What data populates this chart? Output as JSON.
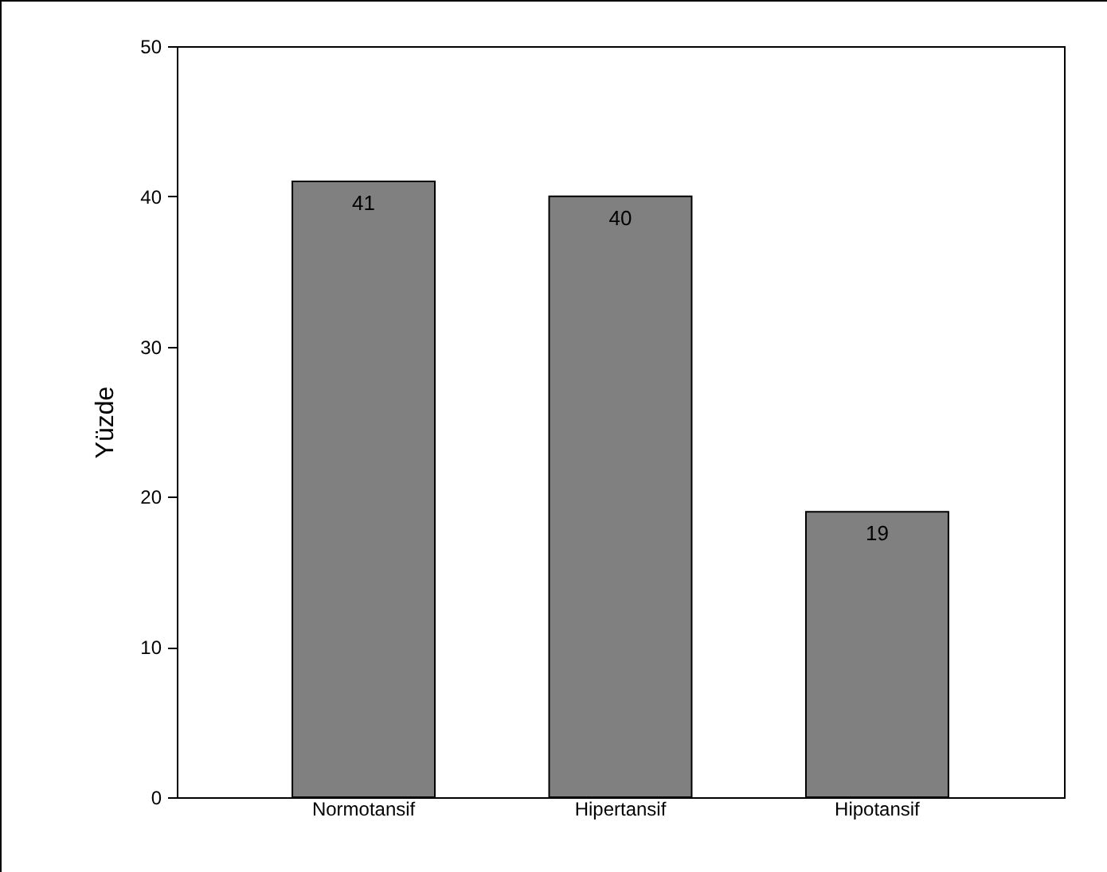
{
  "chart_data": {
    "type": "bar",
    "ylabel": "Yüzde",
    "categories": [
      "Normotansif",
      "Hipertansif",
      "Hipotansif"
    ],
    "values": [
      41,
      40,
      19
    ],
    "color": "#808080",
    "ylim": [
      0,
      50
    ],
    "yticks": [
      0,
      10,
      20,
      30,
      40,
      50
    ],
    "grid": false,
    "data_labels": true
  }
}
